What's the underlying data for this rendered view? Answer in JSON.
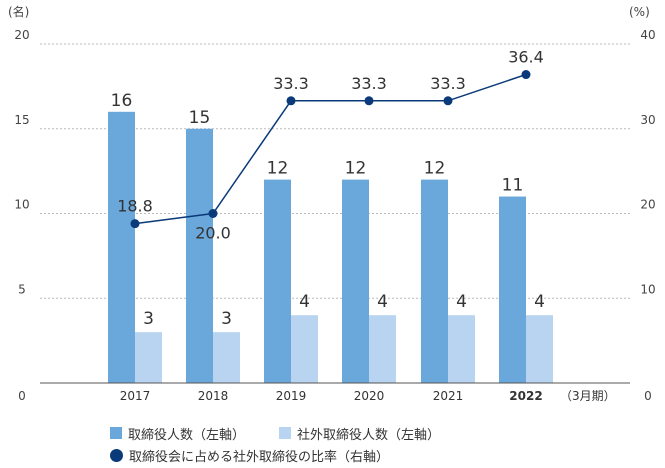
{
  "chart_data": {
    "type": "bar",
    "categories": [
      "2017",
      "2018",
      "2019",
      "2020",
      "2021",
      "2022"
    ],
    "bold_category": "2022",
    "x_suffix": "（3月期）",
    "series": [
      {
        "name": "取締役人数（左軸）",
        "type": "bar",
        "axis": "left",
        "color": "#6aa8db",
        "values": [
          16,
          15,
          12,
          12,
          12,
          11
        ]
      },
      {
        "name": "社外取締役人数（左軸）",
        "type": "bar",
        "axis": "left",
        "color": "#b8d4f0",
        "values": [
          3,
          3,
          4,
          4,
          4,
          4
        ]
      },
      {
        "name": "取締役会に占める社外取締役の比率（右軸）",
        "type": "line",
        "axis": "right",
        "color": "#0a3a7a",
        "values": [
          18.8,
          20.0,
          33.3,
          33.3,
          33.3,
          36.4
        ],
        "labels": [
          "18.8",
          "20.0",
          "33.3",
          "33.3",
          "33.3",
          "36.4"
        ]
      }
    ],
    "y_left": {
      "unit": "(名)",
      "ylim": [
        0,
        20
      ],
      "ticks": [
        "0",
        "5",
        "10",
        "15",
        "20"
      ]
    },
    "y_right": {
      "unit": "(%)",
      "ylim": [
        0,
        40
      ],
      "ticks": [
        "0",
        "10",
        "20",
        "30",
        "40"
      ]
    },
    "grid": true,
    "legend_position": "bottom"
  }
}
